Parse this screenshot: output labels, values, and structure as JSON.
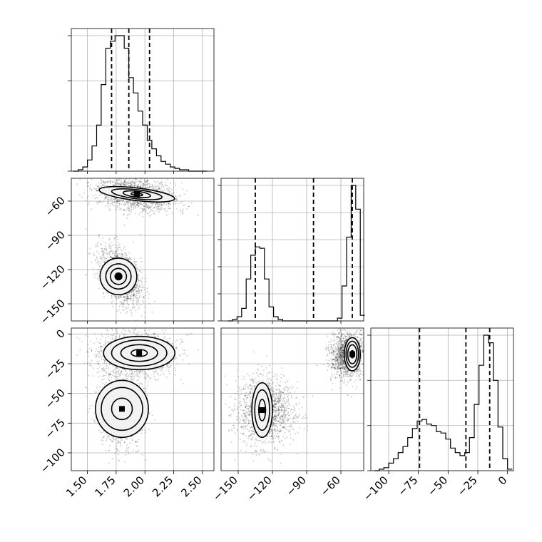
{
  "chart_data": {
    "type": "corner",
    "n_params": 3,
    "param_ranges": [
      [
        1.36,
        2.6
      ],
      [
        -165,
        -40
      ],
      [
        -115,
        5
      ]
    ],
    "ticks": [
      {
        "values": [
          1.5,
          1.75,
          2.0,
          2.25,
          2.5
        ],
        "labels": [
          "1.50",
          "1.75",
          "2.00",
          "2.25",
          "2.50"
        ]
      },
      {
        "values": [
          -150,
          -120,
          -90,
          -60
        ],
        "labels": [
          "−150",
          "−120",
          "−90",
          "−60"
        ]
      },
      {
        "values": [
          -100,
          -75,
          -50,
          -25,
          0
        ],
        "labels": [
          "−100",
          "−75",
          "−50",
          "−25",
          "0"
        ]
      }
    ],
    "hist_ticks": [
      {
        "fractions": [
          0.0,
          0.333,
          0.667,
          1.0
        ]
      },
      {
        "fractions": [
          0.0,
          0.2,
          0.4,
          0.6,
          0.8,
          1.0
        ]
      },
      {
        "fractions": [
          0.0,
          0.333,
          0.667,
          1.0
        ]
      }
    ],
    "histograms": [
      {
        "param": 0,
        "edges": [
          1.38,
          1.42,
          1.46,
          1.5,
          1.54,
          1.58,
          1.62,
          1.66,
          1.7,
          1.74,
          1.78,
          1.82,
          1.86,
          1.9,
          1.94,
          1.98,
          2.02,
          2.06,
          2.1,
          2.14,
          2.18,
          2.22,
          2.26,
          2.3,
          2.34,
          2.38,
          2.42,
          2.46,
          2.5,
          2.54
        ],
        "counts": [
          0.0,
          0.01,
          0.03,
          0.08,
          0.18,
          0.33,
          0.62,
          0.88,
          0.93,
          0.97,
          0.97,
          0.88,
          0.67,
          0.56,
          0.43,
          0.33,
          0.22,
          0.16,
          0.11,
          0.07,
          0.05,
          0.03,
          0.02,
          0.01,
          0.01,
          0.0,
          0.0,
          0.0,
          0.0
        ],
        "quantiles": [
          1.71,
          1.86,
          2.04
        ]
      },
      {
        "param": 1,
        "edges": [
          -159,
          -155,
          -151,
          -147,
          -143,
          -139,
          -135,
          -131,
          -127,
          -123,
          -119,
          -115,
          -111,
          -107,
          -103,
          -99,
          -95,
          -91,
          -87,
          -83,
          -79,
          -75,
          -71,
          -67,
          -63,
          -59,
          -55,
          -51,
          -47,
          -43,
          -39
        ],
        "counts": [
          0.0,
          0.01,
          0.03,
          0.09,
          0.3,
          0.47,
          0.53,
          0.52,
          0.3,
          0.1,
          0.03,
          0.01,
          0.0,
          0.0,
          0.0,
          0.0,
          0.0,
          0.0,
          0.0,
          0.0,
          0.0,
          0.0,
          0.0,
          0.0,
          0.02,
          0.25,
          0.6,
          0.97,
          0.8,
          0.04
        ],
        "quantiles": [
          -135,
          -84,
          -50
        ]
      },
      {
        "param": 2,
        "edges": [
          -112,
          -108,
          -104,
          -100,
          -96,
          -92,
          -88,
          -84,
          -80,
          -76,
          -72,
          -68,
          -64,
          -60,
          -56,
          -52,
          -48,
          -44,
          -40,
          -36,
          -32,
          -28,
          -24,
          -20,
          -16,
          -12,
          -8,
          -4,
          0,
          4
        ],
        "counts": [
          0.0,
          0.01,
          0.02,
          0.05,
          0.08,
          0.12,
          0.16,
          0.22,
          0.28,
          0.33,
          0.34,
          0.31,
          0.3,
          0.26,
          0.25,
          0.21,
          0.15,
          0.12,
          0.1,
          0.12,
          0.22,
          0.44,
          0.7,
          0.9,
          0.85,
          0.6,
          0.29,
          0.08,
          0.01
        ],
        "quantiles": [
          -74,
          -35,
          -15
        ]
      }
    ],
    "clusters": [
      {
        "x": 1.92,
        "y": -54,
        "z": -18,
        "sx": 0.17,
        "sy": 7,
        "sz": 10,
        "weight": 0.5
      },
      {
        "x": 1.79,
        "y": -126,
        "z": -65,
        "sx": 0.09,
        "sy": 11,
        "sz": 14,
        "weight": 0.5
      }
    ],
    "contours": [
      {
        "panel": [
          1,
          0
        ],
        "center": [
          1.93,
          -54
        ],
        "rx": [
          0.33,
          0.22,
          0.12,
          0.05
        ],
        "ry": [
          5.5,
          4.0,
          2.6,
          1.2
        ],
        "tilt_data_per_unit": -12
      },
      {
        "panel": [
          1,
          0
        ],
        "center": [
          1.77,
          -126
        ],
        "rx": [
          0.16,
          0.11,
          0.07,
          0.03
        ],
        "ry": [
          16,
          11,
          7,
          3
        ],
        "tilt_data_per_unit": -60
      },
      {
        "panel": [
          2,
          0
        ],
        "center": [
          1.95,
          -16
        ],
        "rx": [
          0.31,
          0.24,
          0.16,
          0.07
        ],
        "ry": [
          14,
          11,
          7,
          3
        ]
      },
      {
        "panel": [
          2,
          0
        ],
        "center": [
          1.8,
          -63
        ],
        "rx": [
          0.23,
          0.18,
          0.09
        ],
        "ry": [
          24,
          18,
          9
        ]
      },
      {
        "panel": [
          2,
          1
        ],
        "center": [
          -50,
          -17
        ],
        "rx": [
          7,
          5.5,
          4,
          1.6
        ],
        "ry": [
          14,
          11,
          8,
          3
        ]
      },
      {
        "panel": [
          2,
          1
        ],
        "center": [
          -129,
          -64
        ],
        "rx": [
          9,
          6.5,
          3
        ],
        "ry": [
          23,
          17,
          9
        ]
      }
    ],
    "grid": true,
    "colors": {
      "line": "#000000",
      "grid": "#b0b0b0",
      "fill": "#f2f2f2",
      "points": "#000000"
    }
  }
}
